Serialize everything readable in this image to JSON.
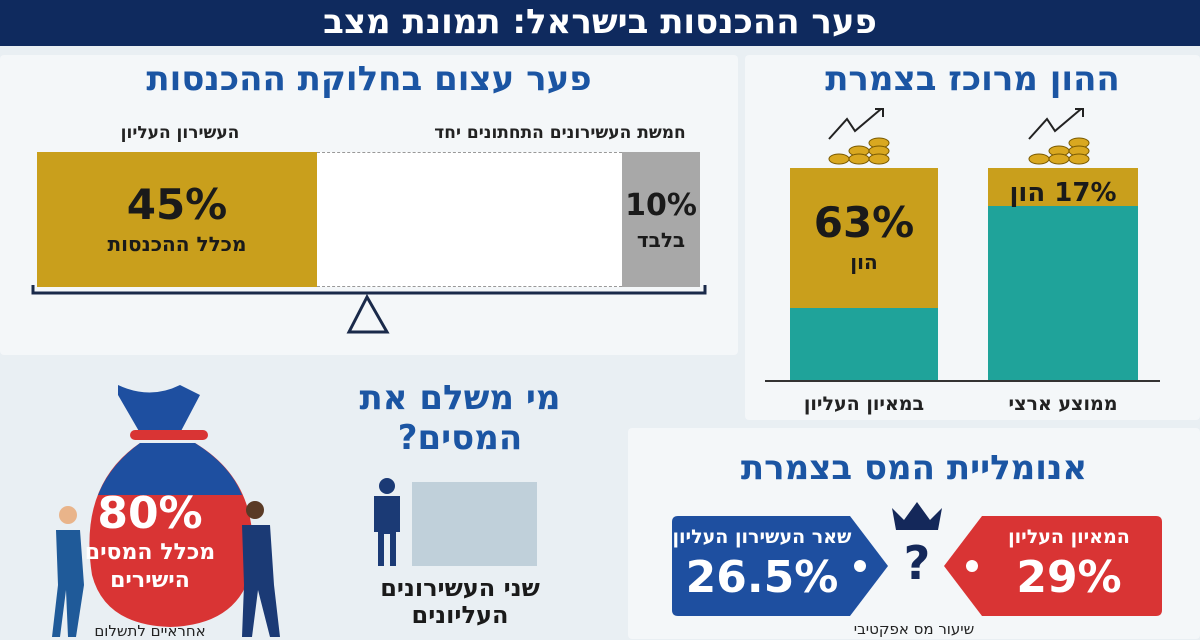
{
  "header": {
    "title": "פער ההכנסות בישראל: תמונת מצב"
  },
  "income_gap": {
    "title": "פער עצום בחלוקת ההכנסות",
    "top_label": "העשירון העליון",
    "bottom_label": "חמשת העשירונים התחתונים יחד",
    "top_value": "45%",
    "top_caption": "מכלל ההכנסות",
    "bottom_value": "10%",
    "bottom_caption": "בלבד"
  },
  "capital": {
    "title": "ההון מרוכז בצמרת",
    "top_value": "63%",
    "top_caption": "הון",
    "avg_value": "17% הון",
    "top_label": "במאיון העליון",
    "avg_label": "ממוצע ארצי"
  },
  "who_pays": {
    "title_line1": "מי משלם את",
    "title_line2": "המסים?",
    "group_line1": "שני העשירונים",
    "group_line2": "העליונים",
    "bag_value": "80%",
    "bag_line1": "מכלל המסים",
    "bag_line2": "הישירים",
    "bag_caption": "אחראיים לתשלום"
  },
  "tax_anomaly": {
    "title": "אנומליית המס בצמרת",
    "blue_label": "שאר העשירון העליון",
    "blue_value": "26.5%",
    "red_label": "המאיון העליון",
    "red_value": "29%",
    "question": "?",
    "caption": "שיעור מס אפקטיבי"
  },
  "colors": {
    "navy": "#0f2a5e",
    "blue": "#1b55a3",
    "gold": "#c99f1c",
    "teal": "#1fa39a",
    "red": "#d93434",
    "gray": "#a8a8a8"
  },
  "chart_data": [
    {
      "type": "bar",
      "title": "ההון מרוכז בצמרת",
      "categories": [
        "במאיון העליון",
        "ממוצע ארצי"
      ],
      "values": [
        63,
        17
      ],
      "ylim": [
        0,
        100
      ]
    },
    {
      "type": "bar",
      "title": "פער עצום בחלוקת ההכנסות",
      "categories": [
        "העשירון העליון",
        "חמשת העשירונים התחתונים יחד"
      ],
      "values": [
        45,
        10
      ]
    }
  ]
}
